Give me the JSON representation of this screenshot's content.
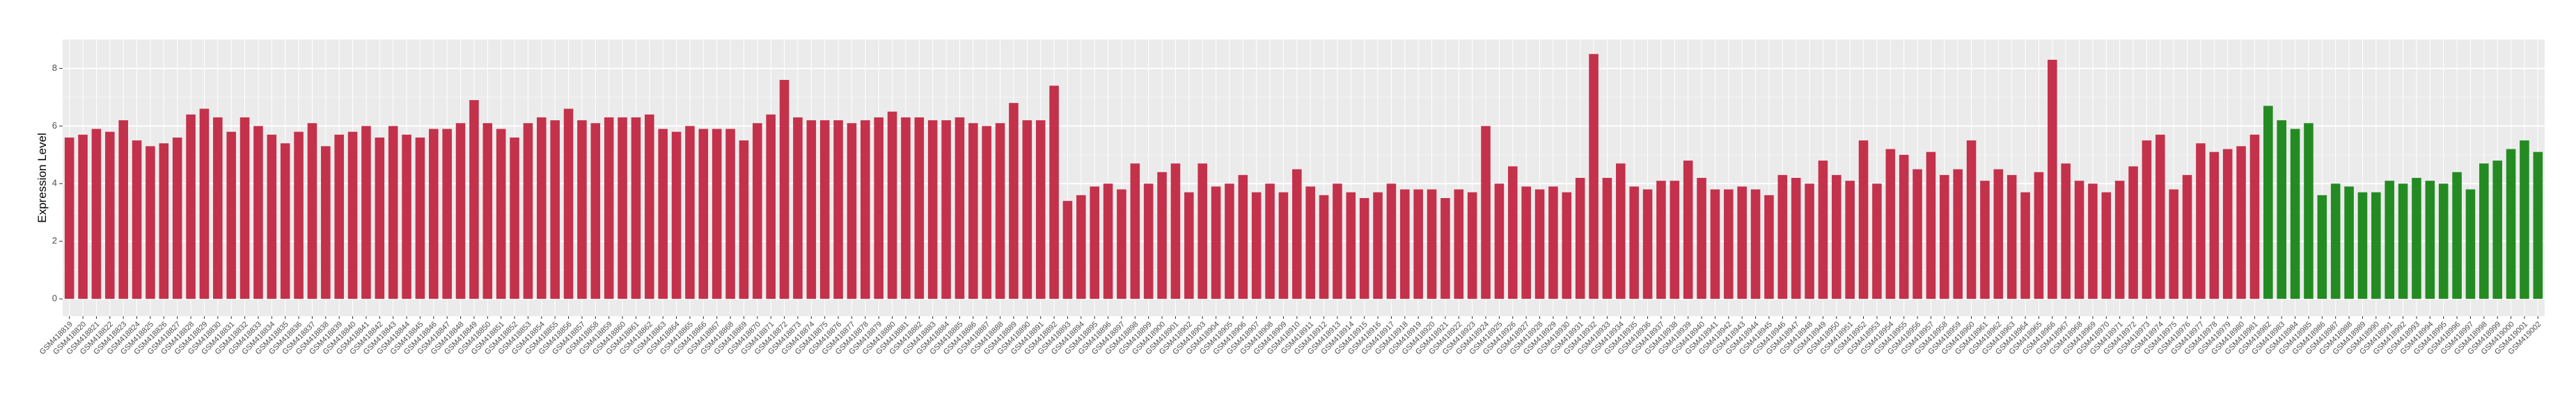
{
  "chart_data": {
    "type": "bar",
    "y_label": "Expression Level",
    "categories": [
      "GSM418819",
      "GSM418820",
      "GSM418821",
      "GSM418822",
      "GSM418823",
      "GSM418824",
      "GSM418825",
      "GSM418826",
      "GSM418827",
      "GSM418828",
      "GSM418829",
      "GSM418830",
      "GSM418831",
      "GSM418832",
      "GSM418833",
      "GSM418834",
      "GSM418835",
      "GSM418836",
      "GSM418837",
      "GSM418838",
      "GSM418839",
      "GSM418840",
      "GSM418841",
      "GSM418842",
      "GSM418843",
      "GSM418844",
      "GSM418845",
      "GSM418846",
      "GSM418847",
      "GSM418848",
      "GSM418849",
      "GSM418850",
      "GSM418851",
      "GSM418852",
      "GSM418853",
      "GSM418854",
      "GSM418855",
      "GSM418856",
      "GSM418857",
      "GSM418858",
      "GSM418859",
      "GSM418860",
      "GSM418861",
      "GSM418862",
      "GSM418863",
      "GSM418864",
      "GSM418865",
      "GSM418866",
      "GSM418867",
      "GSM418868",
      "GSM418869",
      "GSM418870",
      "GSM418871",
      "GSM418872",
      "GSM418873",
      "GSM418874",
      "GSM418875",
      "GSM418876",
      "GSM418877",
      "GSM418878",
      "GSM418879",
      "GSM418880",
      "GSM418881",
      "GSM418882",
      "GSM418883",
      "GSM418884",
      "GSM418885",
      "GSM418886",
      "GSM418887",
      "GSM418888",
      "GSM418889",
      "GSM418890",
      "GSM418891",
      "GSM418892",
      "GSM418893",
      "GSM418894",
      "GSM418895",
      "GSM418896",
      "GSM418897",
      "GSM418898",
      "GSM418899",
      "GSM418900",
      "GSM418901",
      "GSM418902",
      "GSM418903",
      "GSM418904",
      "GSM418905",
      "GSM418906",
      "GSM418907",
      "GSM418908",
      "GSM418909",
      "GSM418910",
      "GSM418911",
      "GSM418912",
      "GSM418913",
      "GSM418914",
      "GSM418915",
      "GSM418916",
      "GSM418917",
      "GSM418918",
      "GSM418919",
      "GSM418920",
      "GSM418921",
      "GSM418922",
      "GSM418923",
      "GSM418924",
      "GSM418925",
      "GSM418926",
      "GSM418927",
      "GSM418928",
      "GSM418929",
      "GSM418930",
      "GSM418931",
      "GSM418932",
      "GSM418933",
      "GSM418934",
      "GSM418935",
      "GSM418936",
      "GSM418937",
      "GSM418938",
      "GSM418939",
      "GSM418940",
      "GSM418941",
      "GSM418942",
      "GSM418943",
      "GSM418944",
      "GSM418945",
      "GSM418946",
      "GSM418947",
      "GSM418948",
      "GSM418949",
      "GSM418950",
      "GSM418951",
      "GSM418952",
      "GSM418953",
      "GSM418954",
      "GSM418955",
      "GSM418956",
      "GSM418957",
      "GSM418958",
      "GSM418959",
      "GSM418960",
      "GSM418961",
      "GSM418962",
      "GSM418963",
      "GSM418964",
      "GSM418965",
      "GSM418966",
      "GSM418967",
      "GSM418968",
      "GSM418969",
      "GSM418970",
      "GSM418971",
      "GSM418972",
      "GSM418973",
      "GSM418974",
      "GSM418975",
      "GSM418976",
      "GSM418977",
      "GSM418978",
      "GSM418979",
      "GSM418980",
      "GSM418981",
      "GSM418982",
      "GSM418983",
      "GSM418984",
      "GSM418985",
      "GSM418986",
      "GSM418987",
      "GSM418988",
      "GSM418989",
      "GSM418990",
      "GSM418991",
      "GSM418992",
      "GSM418993",
      "GSM418994",
      "GSM418995",
      "GSM418996",
      "GSM418997",
      "GSM418998",
      "GSM418999",
      "GSM419000",
      "GSM419001",
      "GSM419002"
    ],
    "values": [
      5.6,
      5.7,
      5.9,
      5.8,
      6.2,
      5.5,
      5.3,
      5.4,
      5.6,
      6.4,
      6.6,
      6.3,
      5.8,
      6.3,
      6.0,
      5.7,
      5.4,
      5.8,
      6.1,
      5.3,
      5.7,
      5.8,
      6.0,
      5.6,
      6.0,
      5.7,
      5.6,
      5.9,
      5.9,
      6.1,
      6.9,
      6.1,
      5.9,
      5.6,
      6.1,
      6.3,
      6.2,
      6.6,
      6.2,
      6.1,
      6.3,
      6.3,
      6.3,
      6.4,
      5.9,
      5.8,
      6.0,
      5.9,
      5.9,
      5.9,
      5.5,
      6.1,
      6.4,
      7.6,
      6.3,
      6.2,
      6.2,
      6.2,
      6.1,
      6.2,
      6.3,
      6.5,
      6.3,
      6.3,
      6.2,
      6.2,
      6.3,
      6.1,
      6.0,
      6.1,
      6.8,
      6.2,
      6.2,
      7.4,
      3.4,
      3.6,
      3.9,
      4.0,
      3.8,
      4.7,
      4.0,
      4.4,
      4.7,
      3.7,
      4.7,
      3.9,
      4.0,
      4.3,
      3.7,
      4.0,
      3.7,
      4.5,
      3.9,
      3.6,
      4.0,
      3.7,
      3.5,
      3.7,
      4.0,
      3.8,
      3.8,
      3.8,
      3.5,
      3.8,
      3.7,
      6.0,
      4.0,
      4.6,
      3.9,
      3.8,
      3.9,
      3.7,
      4.2,
      8.5,
      4.2,
      4.7,
      3.9,
      3.8,
      4.1,
      4.1,
      4.8,
      4.2,
      3.8,
      3.8,
      3.9,
      3.8,
      3.6,
      4.3,
      4.2,
      4.0,
      4.8,
      4.3,
      4.1,
      5.5,
      4.0,
      5.2,
      5.0,
      4.5,
      5.1,
      4.3,
      4.5,
      5.5,
      4.1,
      4.5,
      4.3,
      3.7,
      4.4,
      8.3,
      4.7,
      4.1,
      4.0,
      3.7,
      4.1,
      4.6,
      5.5,
      5.7,
      3.8,
      4.3,
      5.4,
      5.1,
      5.2,
      5.3,
      5.7,
      6.7,
      6.2,
      5.9,
      6.1,
      3.6,
      4.0,
      3.9,
      3.7,
      3.7,
      4.1,
      4.0,
      4.2,
      4.1,
      4.0,
      4.4,
      3.8,
      4.7,
      4.8,
      5.2,
      5.5,
      5.1
    ],
    "colors": [
      "#c4314b",
      "#c4314b",
      "#c4314b",
      "#c4314b",
      "#c4314b",
      "#c4314b",
      "#c4314b",
      "#c4314b",
      "#c4314b",
      "#c4314b",
      "#c4314b",
      "#c4314b",
      "#c4314b",
      "#c4314b",
      "#c4314b",
      "#c4314b",
      "#c4314b",
      "#c4314b",
      "#c4314b",
      "#c4314b",
      "#c4314b",
      "#c4314b",
      "#c4314b",
      "#c4314b",
      "#c4314b",
      "#c4314b",
      "#c4314b",
      "#c4314b",
      "#c4314b",
      "#c4314b",
      "#c4314b",
      "#c4314b",
      "#c4314b",
      "#c4314b",
      "#c4314b",
      "#c4314b",
      "#c4314b",
      "#c4314b",
      "#c4314b",
      "#c4314b",
      "#c4314b",
      "#c4314b",
      "#c4314b",
      "#c4314b",
      "#c4314b",
      "#c4314b",
      "#c4314b",
      "#c4314b",
      "#c4314b",
      "#c4314b",
      "#c4314b",
      "#c4314b",
      "#c4314b",
      "#c4314b",
      "#c4314b",
      "#c4314b",
      "#c4314b",
      "#c4314b",
      "#c4314b",
      "#c4314b",
      "#c4314b",
      "#c4314b",
      "#c4314b",
      "#c4314b",
      "#c4314b",
      "#c4314b",
      "#c4314b",
      "#c4314b",
      "#c4314b",
      "#c4314b",
      "#c4314b",
      "#c4314b",
      "#c4314b",
      "#c4314b",
      "#c4314b",
      "#c4314b",
      "#c4314b",
      "#c4314b",
      "#c4314b",
      "#c4314b",
      "#c4314b",
      "#c4314b",
      "#c4314b",
      "#c4314b",
      "#c4314b",
      "#c4314b",
      "#c4314b",
      "#c4314b",
      "#c4314b",
      "#c4314b",
      "#c4314b",
      "#c4314b",
      "#c4314b",
      "#c4314b",
      "#c4314b",
      "#c4314b",
      "#c4314b",
      "#c4314b",
      "#c4314b",
      "#c4314b",
      "#c4314b",
      "#c4314b",
      "#c4314b",
      "#c4314b",
      "#c4314b",
      "#c4314b",
      "#c4314b",
      "#c4314b",
      "#c4314b",
      "#c4314b",
      "#c4314b",
      "#c4314b",
      "#c4314b",
      "#c4314b",
      "#c4314b",
      "#c4314b",
      "#c4314b",
      "#c4314b",
      "#c4314b",
      "#c4314b",
      "#c4314b",
      "#c4314b",
      "#c4314b",
      "#c4314b",
      "#c4314b",
      "#c4314b",
      "#c4314b",
      "#c4314b",
      "#c4314b",
      "#c4314b",
      "#c4314b",
      "#c4314b",
      "#c4314b",
      "#c4314b",
      "#c4314b",
      "#c4314b",
      "#c4314b",
      "#c4314b",
      "#c4314b",
      "#c4314b",
      "#c4314b",
      "#c4314b",
      "#c4314b",
      "#c4314b",
      "#c4314b",
      "#c4314b",
      "#c4314b",
      "#c4314b",
      "#c4314b",
      "#c4314b",
      "#c4314b",
      "#c4314b",
      "#c4314b",
      "#c4314b",
      "#c4314b",
      "#c4314b",
      "#c4314b",
      "#c4314b",
      "#c4314b",
      "#c4314b",
      "#c4314b",
      "#c4314b",
      "#c4314b",
      "#238b22",
      "#238b22",
      "#238b22",
      "#238b22",
      "#238b22",
      "#238b22",
      "#238b22",
      "#238b22",
      "#238b22",
      "#238b22",
      "#238b22",
      "#238b22",
      "#238b22",
      "#238b22",
      "#238b22",
      "#238b22",
      "#238b22",
      "#238b22",
      "#238b22",
      "#238b22",
      "#238b22"
    ],
    "ylim": [
      -0.6,
      9.0
    ],
    "yticks": [
      0,
      2,
      4,
      6,
      8
    ],
    "grid": true
  }
}
